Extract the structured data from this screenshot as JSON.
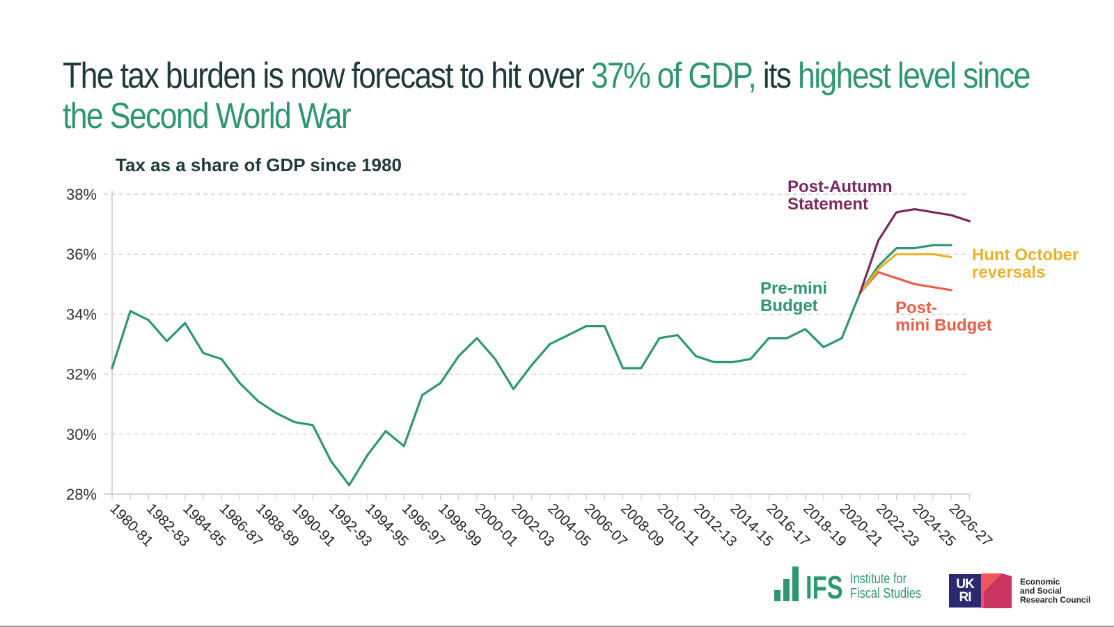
{
  "headline": {
    "part1": "The tax burden is now forecast to hit over ",
    "highlight1": "37% of GDP,",
    "part2": " its ",
    "highlight2": "highest level since",
    "line2": "the Second World War"
  },
  "colors": {
    "text_dark": "#1f3a3a",
    "green": "#2e9670",
    "purple": "#7b2a5e",
    "yellow": "#e8b32a",
    "orange": "#e8604a",
    "grid": "#c8c8c8"
  },
  "chart_data": {
    "type": "line",
    "title": "Tax as a share of GDP since 1980",
    "xlabel": "",
    "ylabel": "",
    "ylim": [
      28,
      38
    ],
    "yticks": [
      28,
      30,
      32,
      34,
      36,
      38
    ],
    "ytick_labels": [
      "28%",
      "30%",
      "32%",
      "34%",
      "36%",
      "38%"
    ],
    "grid": "horizontal-dashed",
    "x": [
      "1980-81",
      "1981-82",
      "1982-83",
      "1983-84",
      "1984-85",
      "1985-86",
      "1986-87",
      "1987-88",
      "1988-89",
      "1989-90",
      "1990-91",
      "1991-92",
      "1992-93",
      "1993-94",
      "1994-95",
      "1995-96",
      "1996-97",
      "1997-98",
      "1998-99",
      "1999-00",
      "2000-01",
      "2001-02",
      "2002-03",
      "2003-04",
      "2004-05",
      "2005-06",
      "2006-07",
      "2007-08",
      "2008-09",
      "2009-10",
      "2010-11",
      "2011-12",
      "2012-13",
      "2013-14",
      "2014-15",
      "2015-16",
      "2016-17",
      "2017-18",
      "2018-19",
      "2019-20",
      "2020-21",
      "2021-22",
      "2022-23",
      "2023-24",
      "2024-25",
      "2025-26",
      "2026-27",
      "2027-28"
    ],
    "xtick_labels": [
      "1980-81",
      "1982-83",
      "1984-85",
      "1986-87",
      "1988-89",
      "1990-91",
      "1992-93",
      "1994-95",
      "1996-97",
      "1998-99",
      "2000-01",
      "2002-03",
      "2004-05",
      "2006-07",
      "2008-09",
      "2010-11",
      "2012-13",
      "2014-15",
      "2016-17",
      "2018-19",
      "2020-21",
      "2022-23",
      "2024-25",
      "2026-27"
    ],
    "series": [
      {
        "name": "Pre-mini Budget",
        "color": "#2e9670",
        "start": "1980-81",
        "values": [
          32.2,
          34.1,
          33.8,
          33.1,
          33.7,
          32.7,
          32.5,
          31.7,
          31.1,
          30.7,
          30.4,
          30.3,
          29.1,
          28.3,
          29.3,
          30.1,
          29.6,
          31.3,
          31.7,
          32.6,
          33.2,
          32.5,
          31.5,
          32.3,
          33.0,
          33.3,
          33.6,
          33.6,
          32.2,
          32.2,
          33.2,
          33.3,
          32.6,
          32.4,
          32.4,
          32.5,
          33.2,
          33.2,
          33.5,
          32.9,
          33.2,
          34.7,
          35.6,
          36.2,
          36.2,
          36.3,
          36.3
        ]
      },
      {
        "name": "Post-Autumn Statement",
        "color": "#7b2a5e",
        "start": "2021-22",
        "values": [
          34.7,
          36.45,
          37.4,
          37.5,
          37.4,
          37.3,
          37.1
        ]
      },
      {
        "name": "Hunt October reversals",
        "color": "#e8b32a",
        "start": "2021-22",
        "values": [
          34.7,
          35.5,
          36.0,
          36.0,
          36.0,
          35.9
        ]
      },
      {
        "name": "Post-mini Budget",
        "color": "#e8604a",
        "start": "2021-22",
        "values": [
          34.7,
          35.4,
          35.2,
          35.0,
          34.9,
          34.8
        ]
      }
    ],
    "annotations": [
      {
        "lines": [
          "Post-Autumn",
          "Statement"
        ],
        "series": "Post-Autumn Statement",
        "placement": "above-right"
      },
      {
        "lines": [
          "Pre-mini",
          "Budget"
        ],
        "series": "Pre-mini Budget",
        "placement": "left-of-forecast"
      },
      {
        "lines": [
          "Hunt October",
          "reversals"
        ],
        "series": "Hunt October reversals",
        "placement": "right"
      },
      {
        "lines": [
          "Post-",
          "mini Budget"
        ],
        "series": "Post-mini Budget",
        "placement": "below-right"
      }
    ]
  },
  "footer": {
    "ifs_mark": "IFS",
    "ifs_name_line1": "Institute for",
    "ifs_name_line2": "Fiscal Studies",
    "ukri_line1": "UK",
    "ukri_line2": "RI",
    "esrc_line1": "Economic",
    "esrc_line2": "and Social",
    "esrc_line3": "Research Council"
  }
}
